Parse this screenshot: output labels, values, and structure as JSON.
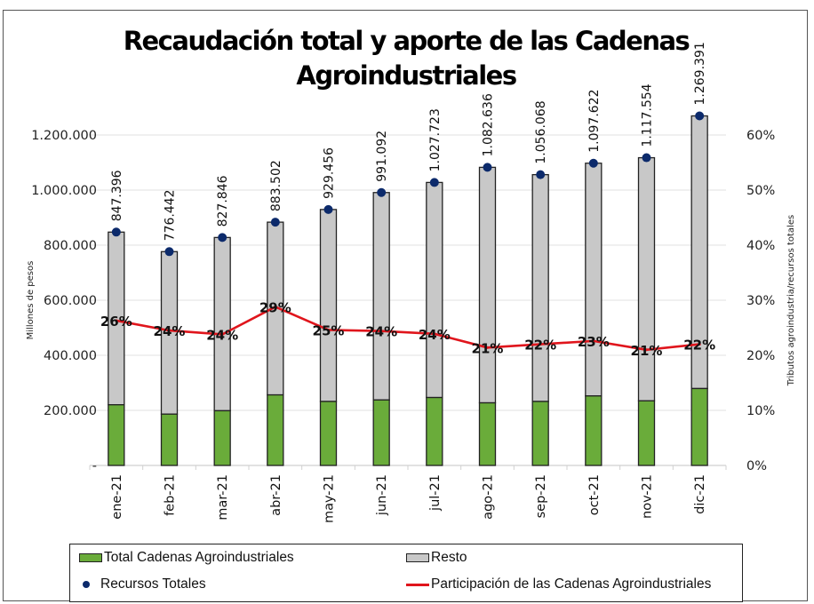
{
  "chart_data": {
    "type": "bar",
    "subtype": "stacked-bar-with-line-and-markers",
    "title_lines": [
      "Recaudación total y aporte de las Cadenas",
      "Agroindustriales"
    ],
    "categories": [
      "ene-21",
      "feb-21",
      "mar-21",
      "abr-21",
      "may-21",
      "jun-21",
      "jul-21",
      "ago-21",
      "sep-21",
      "oct-21",
      "nov-21",
      "dic-21"
    ],
    "y_left": {
      "label": "Millones de pesos",
      "range": [
        0,
        1200000
      ],
      "ticks": [
        0,
        200000,
        400000,
        600000,
        800000,
        1000000,
        1200000
      ],
      "tick_labels": [
        "-",
        "200.000",
        "400.000",
        "600.000",
        "800.000",
        "1.000.000",
        "1.200.000"
      ]
    },
    "y_right": {
      "label": "Tributos agroindustria/recursos totales",
      "range": [
        0,
        60
      ],
      "ticks": [
        0,
        10,
        20,
        30,
        40,
        50,
        60
      ],
      "tick_labels": [
        "0%",
        "10%",
        "20%",
        "30%",
        "40%",
        "50%",
        "60%"
      ]
    },
    "grid": true,
    "series": [
      {
        "name": "Total Cadenas Agroindustriales",
        "kind": "stacked-bar",
        "axis": "left",
        "color": "#6aac3a",
        "values": [
          220323,
          186346,
          198683,
          256216,
          232364,
          237862,
          246654,
          227354,
          232335,
          252453,
          234686,
          279266
        ]
      },
      {
        "name": "Resto",
        "kind": "stacked-bar",
        "axis": "left",
        "color": "#c8c8c8",
        "values": [
          627073,
          590096,
          629163,
          627286,
          697092,
          753230,
          781069,
          855282,
          823733,
          845169,
          882868,
          990125
        ]
      },
      {
        "name": "Recursos Totales",
        "kind": "markers",
        "axis": "left",
        "color": "#0c2a6b",
        "values": [
          847396,
          776442,
          827846,
          883502,
          929456,
          991092,
          1027723,
          1082636,
          1056068,
          1097622,
          1117554,
          1269391
        ],
        "labels": [
          "847.396",
          "776.442",
          "827.846",
          "883.502",
          "929.456",
          "991.092",
          "1.027.723",
          "1.082.636",
          "1.056.068",
          "1.097.622",
          "1.117.554",
          "1.269.391"
        ]
      },
      {
        "name": "Participación de las Cadenas Agroindustriales",
        "kind": "line",
        "axis": "right",
        "color": "#e0151c",
        "values": [
          26.3,
          24.5,
          23.8,
          28.8,
          24.6,
          24.4,
          23.9,
          21.4,
          22.0,
          22.6,
          21.0,
          22.0
        ],
        "labels": [
          "26%",
          "24%",
          "24%",
          "29%",
          "25%",
          "24%",
          "24%",
          "21%",
          "22%",
          "23%",
          "21%",
          "22%"
        ]
      }
    ],
    "legend": {
      "position": "bottom",
      "items": [
        {
          "label": "Total Cadenas Agroindustriales",
          "symbol": "rect",
          "color": "#6aac3a"
        },
        {
          "label": "Resto",
          "symbol": "rect",
          "color": "#c8c8c8"
        },
        {
          "label": "Recursos Totales",
          "symbol": "dot",
          "color": "#0c2a6b"
        },
        {
          "label": "Participación de las Cadenas Agroindustriales",
          "symbol": "line",
          "color": "#e0151c"
        }
      ]
    }
  }
}
